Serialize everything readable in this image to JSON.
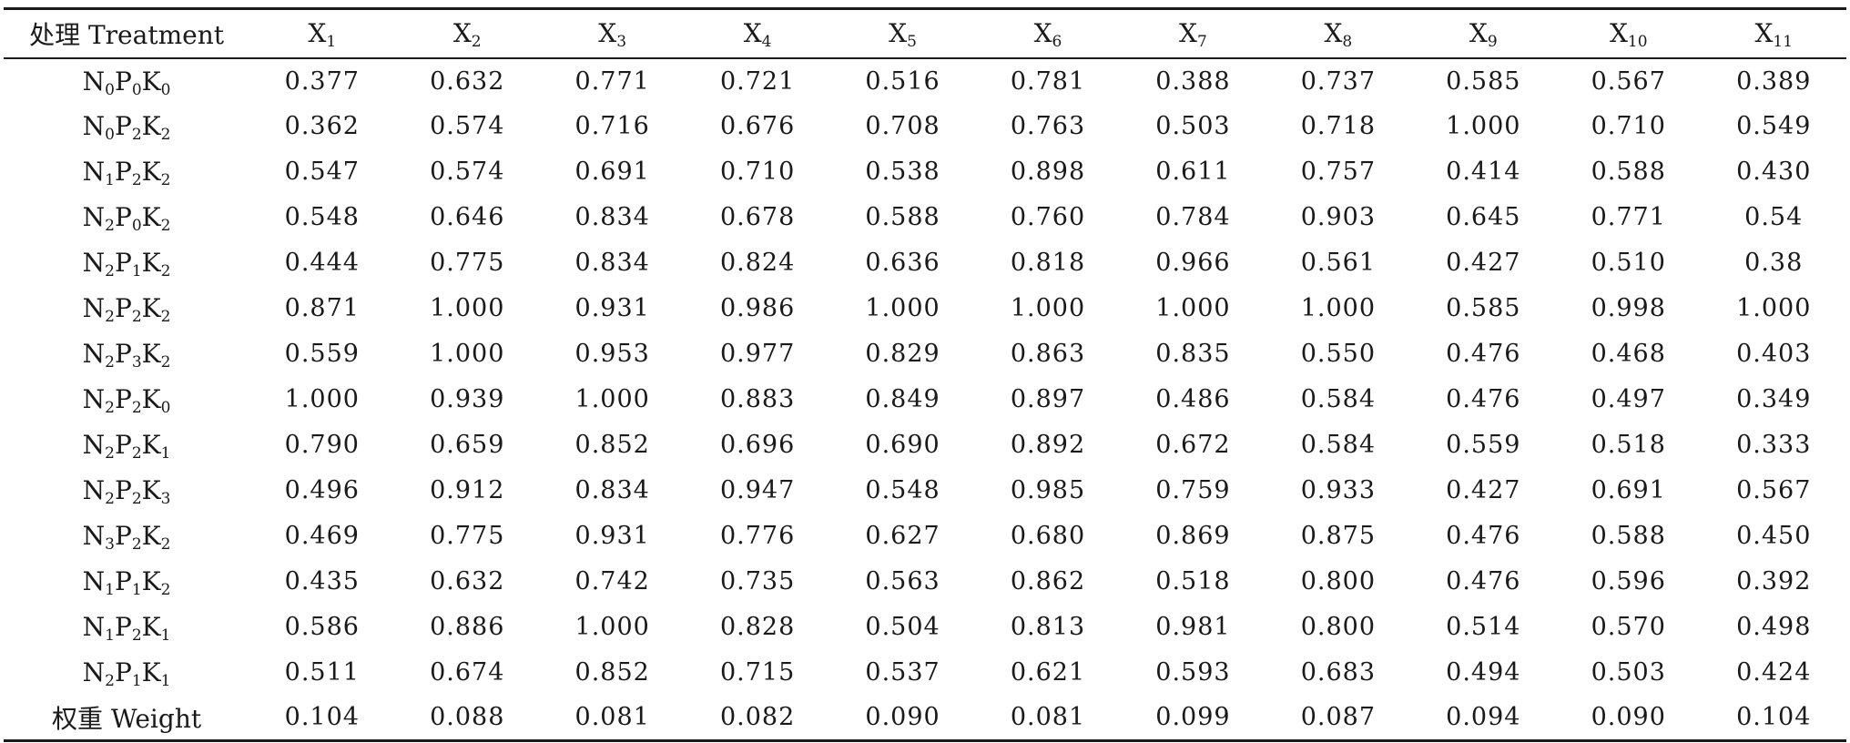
{
  "table": {
    "header": {
      "treatment_label": "处理 Treatment",
      "columns": [
        {
          "base": "X",
          "sub": "1"
        },
        {
          "base": "X",
          "sub": "2"
        },
        {
          "base": "X",
          "sub": "3"
        },
        {
          "base": "X",
          "sub": "4"
        },
        {
          "base": "X",
          "sub": "5"
        },
        {
          "base": "X",
          "sub": "6"
        },
        {
          "base": "X",
          "sub": "7"
        },
        {
          "base": "X",
          "sub": "8"
        },
        {
          "base": "X",
          "sub": "9"
        },
        {
          "base": "X",
          "sub": "10"
        },
        {
          "base": "X",
          "sub": "11"
        }
      ]
    },
    "rows": [
      {
        "treatment": {
          "n": "0",
          "p": "0",
          "k": "0"
        },
        "values": [
          "0.377",
          "0.632",
          "0.771",
          "0.721",
          "0.516",
          "0.781",
          "0.388",
          "0.737",
          "0.585",
          "0.567",
          "0.389"
        ]
      },
      {
        "treatment": {
          "n": "0",
          "p": "2",
          "k": "2"
        },
        "values": [
          "0.362",
          "0.574",
          "0.716",
          "0.676",
          "0.708",
          "0.763",
          "0.503",
          "0.718",
          "1.000",
          "0.710",
          "0.549"
        ]
      },
      {
        "treatment": {
          "n": "1",
          "p": "2",
          "k": "2"
        },
        "values": [
          "0.547",
          "0.574",
          "0.691",
          "0.710",
          "0.538",
          "0.898",
          "0.611",
          "0.757",
          "0.414",
          "0.588",
          "0.430"
        ]
      },
      {
        "treatment": {
          "n": "2",
          "p": "0",
          "k": "2"
        },
        "values": [
          "0.548",
          "0.646",
          "0.834",
          "0.678",
          "0.588",
          "0.760",
          "0.784",
          "0.903",
          "0.645",
          "0.771",
          "0.54"
        ]
      },
      {
        "treatment": {
          "n": "2",
          "p": "1",
          "k": "2"
        },
        "values": [
          "0.444",
          "0.775",
          "0.834",
          "0.824",
          "0.636",
          "0.818",
          "0.966",
          "0.561",
          "0.427",
          "0.510",
          "0.38"
        ]
      },
      {
        "treatment": {
          "n": "2",
          "p": "2",
          "k": "2"
        },
        "values": [
          "0.871",
          "1.000",
          "0.931",
          "0.986",
          "1.000",
          "1.000",
          "1.000",
          "1.000",
          "0.585",
          "0.998",
          "1.000"
        ]
      },
      {
        "treatment": {
          "n": "2",
          "p": "3",
          "k": "2"
        },
        "values": [
          "0.559",
          "1.000",
          "0.953",
          "0.977",
          "0.829",
          "0.863",
          "0.835",
          "0.550",
          "0.476",
          "0.468",
          "0.403"
        ]
      },
      {
        "treatment": {
          "n": "2",
          "p": "2",
          "k": "0"
        },
        "values": [
          "1.000",
          "0.939",
          "1.000",
          "0.883",
          "0.849",
          "0.897",
          "0.486",
          "0.584",
          "0.476",
          "0.497",
          "0.349"
        ]
      },
      {
        "treatment": {
          "n": "2",
          "p": "2",
          "k": "1"
        },
        "values": [
          "0.790",
          "0.659",
          "0.852",
          "0.696",
          "0.690",
          "0.892",
          "0.672",
          "0.584",
          "0.559",
          "0.518",
          "0.333"
        ]
      },
      {
        "treatment": {
          "n": "2",
          "p": "2",
          "k": "3"
        },
        "values": [
          "0.496",
          "0.912",
          "0.834",
          "0.947",
          "0.548",
          "0.985",
          "0.759",
          "0.933",
          "0.427",
          "0.691",
          "0.567"
        ]
      },
      {
        "treatment": {
          "n": "3",
          "p": "2",
          "k": "2"
        },
        "values": [
          "0.469",
          "0.775",
          "0.931",
          "0.776",
          "0.627",
          "0.680",
          "0.869",
          "0.875",
          "0.476",
          "0.588",
          "0.450"
        ]
      },
      {
        "treatment": {
          "n": "1",
          "p": "1",
          "k": "2"
        },
        "values": [
          "0.435",
          "0.632",
          "0.742",
          "0.735",
          "0.563",
          "0.862",
          "0.518",
          "0.800",
          "0.476",
          "0.596",
          "0.392"
        ]
      },
      {
        "treatment": {
          "n": "1",
          "p": "2",
          "k": "1"
        },
        "values": [
          "0.586",
          "0.886",
          "1.000",
          "0.828",
          "0.504",
          "0.813",
          "0.981",
          "0.800",
          "0.514",
          "0.570",
          "0.498"
        ]
      },
      {
        "treatment": {
          "n": "2",
          "p": "1",
          "k": "1"
        },
        "values": [
          "0.511",
          "0.674",
          "0.852",
          "0.715",
          "0.537",
          "0.621",
          "0.593",
          "0.683",
          "0.494",
          "0.503",
          "0.424"
        ]
      }
    ],
    "weight_row": {
      "label": "权重 Weight",
      "values": [
        "0.104",
        "0.088",
        "0.081",
        "0.082",
        "0.090",
        "0.081",
        "0.099",
        "0.087",
        "0.094",
        "0.090",
        "0.104"
      ]
    }
  }
}
